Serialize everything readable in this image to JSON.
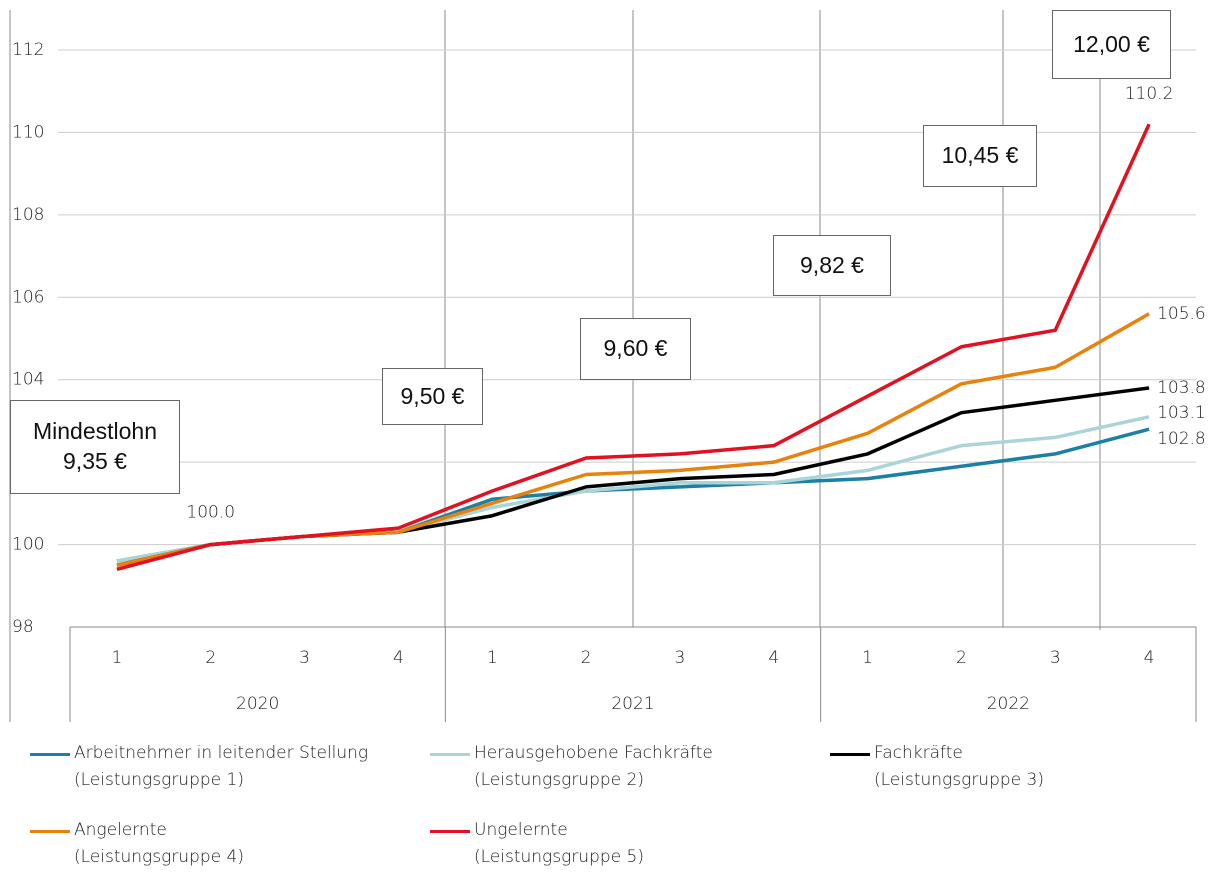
{
  "chart_data": {
    "type": "line",
    "categories": [
      "1",
      "2",
      "3",
      "4",
      "1",
      "2",
      "3",
      "4",
      "1",
      "2",
      "3",
      "4"
    ],
    "x_groups": [
      "2020",
      "2021",
      "2022"
    ],
    "ylim": [
      98,
      112
    ],
    "yticks": [
      98,
      100,
      102,
      104,
      106,
      108,
      110,
      112
    ],
    "grid": true,
    "legend": "bottom",
    "series": [
      {
        "name": "Arbeitnehmer in leitender Stellung\n(Leistungsgruppe 1)",
        "color": "#1b7fa6",
        "values": [
          99.6,
          100.0,
          100.2,
          100.3,
          101.1,
          101.3,
          101.4,
          101.5,
          101.6,
          101.9,
          102.2,
          102.8
        ],
        "value_labels": [
          null,
          "100.0",
          null,
          null,
          null,
          null,
          null,
          null,
          null,
          null,
          null,
          "102.8"
        ]
      },
      {
        "name": "Herausgehobene Fachkräfte\n(Leistungsgruppe 2)",
        "color": "#a9d4d8",
        "values": [
          99.6,
          100.0,
          100.2,
          100.3,
          100.9,
          101.3,
          101.5,
          101.5,
          101.8,
          102.4,
          102.6,
          103.1
        ],
        "value_labels": [
          null,
          null,
          null,
          null,
          null,
          null,
          null,
          null,
          null,
          null,
          null,
          "103.1"
        ]
      },
      {
        "name": "Fachkräfte\n(Leistungsgruppe 3)",
        "color": "#000000",
        "values": [
          99.5,
          100.0,
          100.2,
          100.3,
          100.7,
          101.4,
          101.6,
          101.7,
          102.2,
          103.2,
          103.5,
          103.8
        ],
        "value_labels": [
          null,
          null,
          null,
          null,
          null,
          null,
          null,
          null,
          null,
          null,
          null,
          "103.8"
        ]
      },
      {
        "name": "Angelernte\n(Leistungsgruppe 4)",
        "color": "#e8820c",
        "values": [
          99.5,
          100.0,
          100.2,
          100.3,
          101.0,
          101.7,
          101.8,
          102.0,
          102.7,
          103.9,
          104.3,
          105.6
        ],
        "value_labels": [
          null,
          null,
          null,
          null,
          null,
          null,
          null,
          null,
          null,
          null,
          null,
          "105.6"
        ]
      },
      {
        "name": "Ungelernte\n(Leistungsgruppe 5)",
        "color": "#e3101f",
        "values": [
          99.4,
          100.0,
          100.2,
          100.4,
          101.3,
          102.1,
          102.2,
          102.4,
          103.6,
          104.8,
          105.2,
          110.2
        ],
        "value_labels": [
          null,
          null,
          null,
          null,
          null,
          null,
          null,
          null,
          null,
          null,
          null,
          "110.2"
        ]
      }
    ],
    "annotations": [
      "Mindestlohn\n9,35 €",
      "9,50 €",
      "9,60 €",
      "9,82 €",
      "10,45 €",
      "12,00 €"
    ]
  }
}
